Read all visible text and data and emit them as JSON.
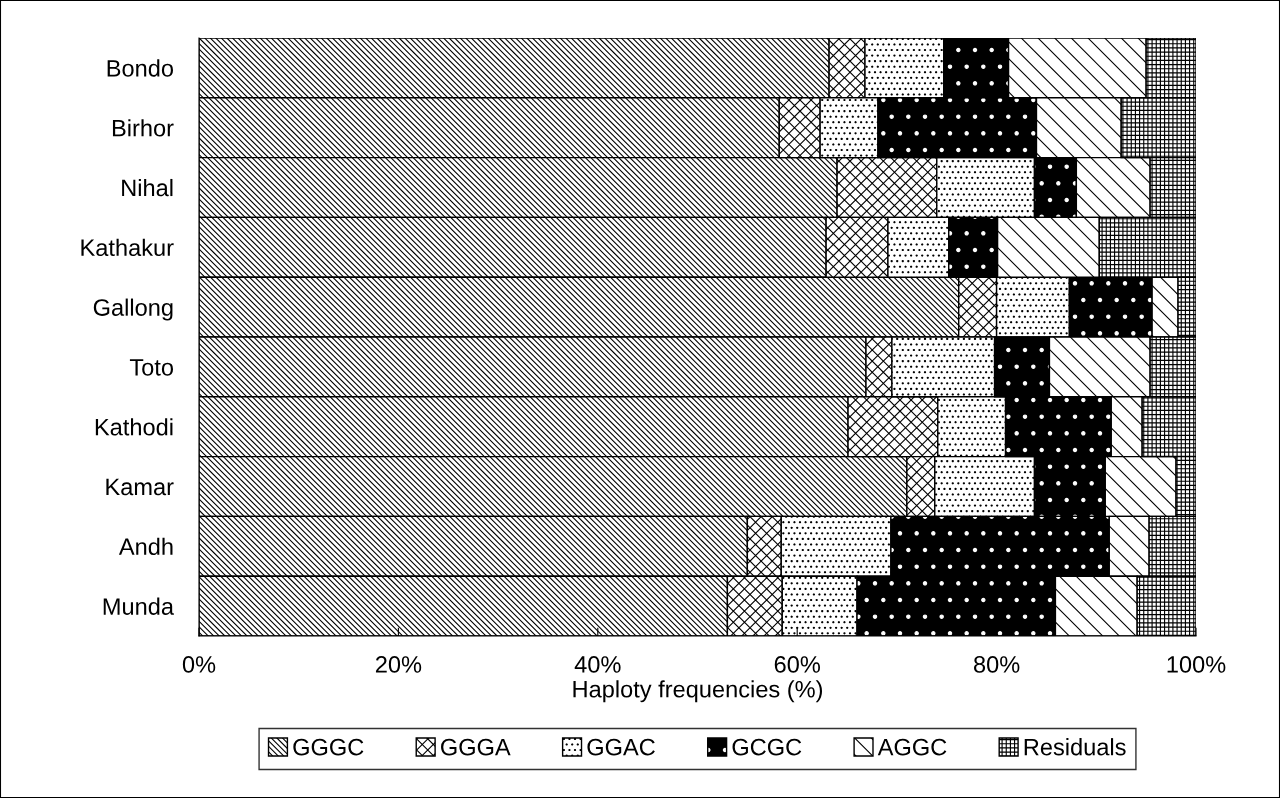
{
  "chart_data": {
    "type": "bar",
    "orientation": "horizontal",
    "stacked": true,
    "xlabel": "Haploty frequencies (%)",
    "categories": [
      "Bondo",
      "Birhor",
      "Nihal",
      "Kathakur",
      "Gallong",
      "Toto",
      "Kathodi",
      "Kamar",
      "Andh",
      "Munda"
    ],
    "series": [
      {
        "name": "GGGC",
        "color": "#000000",
        "values": [
          63.2,
          58.2,
          64,
          62.9,
          76.2,
          66.9,
          65.1,
          71,
          55,
          53
        ]
      },
      {
        "name": "GGGA",
        "color": "#000000",
        "values": [
          3.6,
          4.1,
          10,
          6.2,
          3.8,
          2.6,
          9,
          2.8,
          3.4,
          5.5
        ]
      },
      {
        "name": "GGAC",
        "color": "#000000",
        "values": [
          7.9,
          5.8,
          9.8,
          6.1,
          7.3,
          10.3,
          6.8,
          10,
          11,
          7.5
        ]
      },
      {
        "name": "GCGC",
        "color": "#000000",
        "values": [
          6.5,
          15.9,
          4.2,
          4.9,
          8.3,
          5.5,
          10.6,
          7.1,
          21.9,
          19.9
        ]
      },
      {
        "name": "AGGC",
        "color": "#000000",
        "values": [
          13.8,
          8.5,
          7.4,
          10.2,
          2.6,
          10.1,
          3.1,
          7.1,
          4,
          8.2
        ]
      },
      {
        "name": "Residuals",
        "color": "#000000",
        "values": [
          5.0,
          7.5,
          4.6,
          9.7,
          1.8,
          4.6,
          5.4,
          2.0,
          4.7,
          5.9
        ]
      }
    ],
    "xlim": [
      0,
      100
    ],
    "xticks": [
      {
        "value": 0,
        "label": "0%"
      },
      {
        "value": 20,
        "label": "20%"
      },
      {
        "value": 40,
        "label": "40%"
      },
      {
        "value": 60,
        "label": "60%"
      },
      {
        "value": 80,
        "label": "80%"
      },
      {
        "value": 100,
        "label": "100%"
      }
    ],
    "legend": "bottom"
  }
}
